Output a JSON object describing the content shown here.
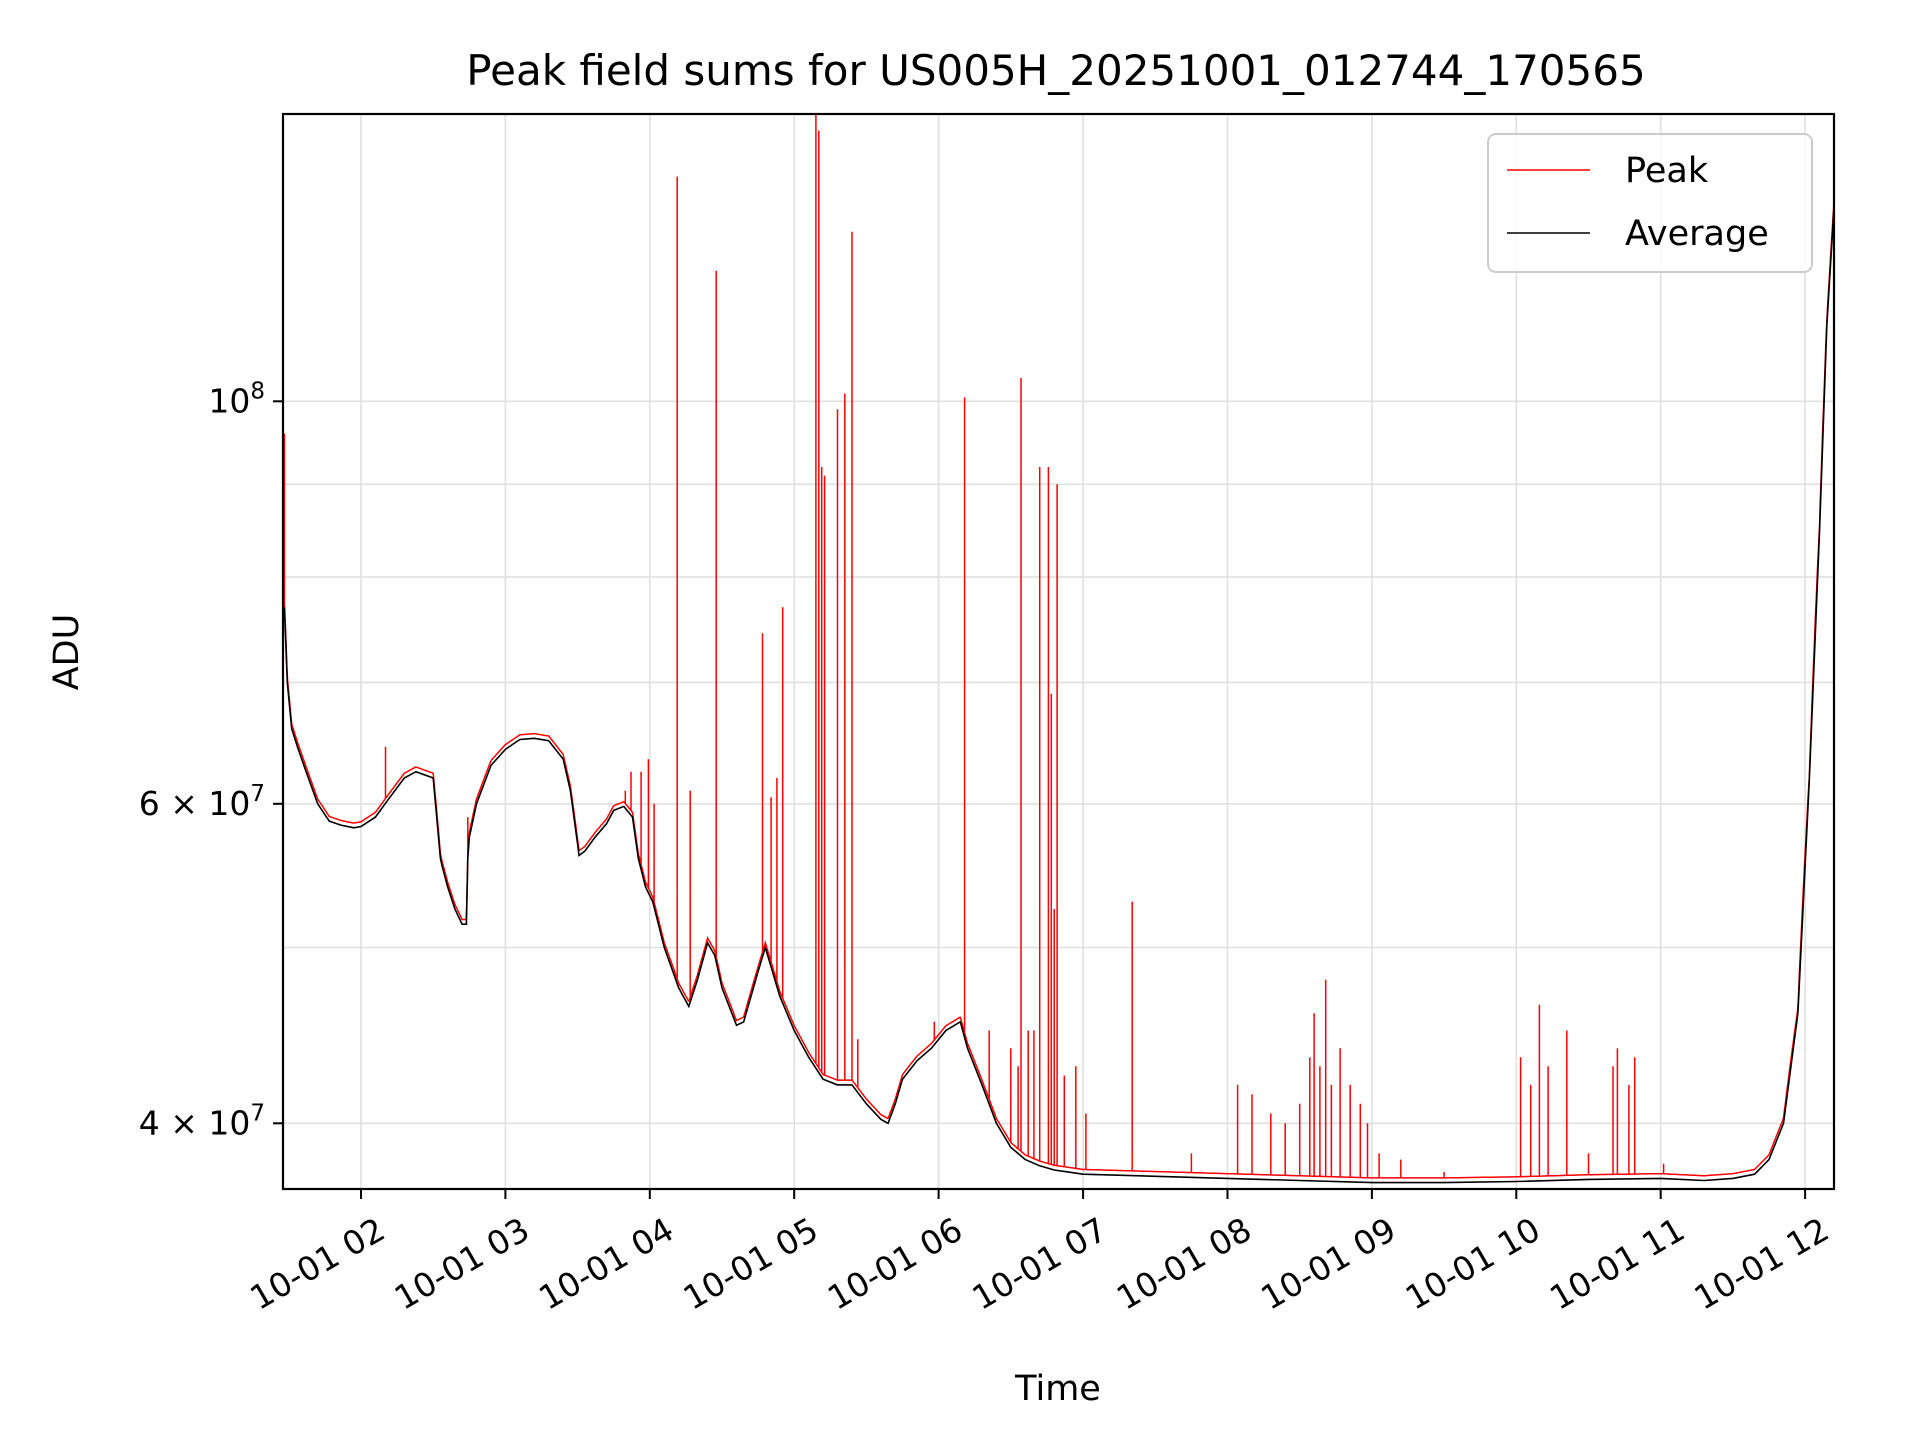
{
  "chart_data": {
    "type": "line",
    "title": "Peak field sums for US005H_20251001_012744_170565",
    "xlabel": "Time",
    "ylabel": "ADU",
    "yscale": "log",
    "ylim": [
      36800000,
      144000000
    ],
    "xlim": [
      1.46,
      12.2
    ],
    "grid": true,
    "legend_position": "top-right",
    "x_ticks": [
      {
        "value": 2,
        "label": "10-01 02"
      },
      {
        "value": 3,
        "label": "10-01 03"
      },
      {
        "value": 4,
        "label": "10-01 04"
      },
      {
        "value": 5,
        "label": "10-01 05"
      },
      {
        "value": 6,
        "label": "10-01 06"
      },
      {
        "value": 7,
        "label": "10-01 07"
      },
      {
        "value": 8,
        "label": "10-01 08"
      },
      {
        "value": 9,
        "label": "10-01 09"
      },
      {
        "value": 10,
        "label": "10-01 10"
      },
      {
        "value": 11,
        "label": "10-01 11"
      },
      {
        "value": 12,
        "label": "10-01 12"
      }
    ],
    "y_ticks": [
      {
        "value": 40000000,
        "mantissa": "4",
        "times": "×",
        "base": "10",
        "exp": "7"
      },
      {
        "value": 60000000,
        "mantissa": "6",
        "times": "×",
        "base": "10",
        "exp": "7"
      },
      {
        "value": 100000000,
        "mantissa": "",
        "times": "",
        "base": "10",
        "exp": "8"
      }
    ],
    "y_minor_gridlines": [
      50000000,
      70000000,
      80000000,
      90000000
    ],
    "series": [
      {
        "name": "Average",
        "color": "#000000",
        "x": [
          1.46,
          1.47,
          1.49,
          1.52,
          1.56,
          1.62,
          1.7,
          1.78,
          1.86,
          1.95,
          2.0,
          2.1,
          2.2,
          2.3,
          2.38,
          2.5,
          2.55,
          2.56,
          2.6,
          2.65,
          2.7,
          2.73,
          2.74,
          2.75,
          2.8,
          2.9,
          3.0,
          3.1,
          3.2,
          3.3,
          3.4,
          3.45,
          3.5,
          3.51,
          3.55,
          3.62,
          3.7,
          3.75,
          3.82,
          3.88,
          3.92,
          3.97,
          4.02,
          4.1,
          4.2,
          4.27,
          4.33,
          4.4,
          4.45,
          4.5,
          4.6,
          4.65,
          4.75,
          4.8,
          4.9,
          5.0,
          5.1,
          5.2,
          5.3,
          5.4,
          5.5,
          5.6,
          5.65,
          5.7,
          5.75,
          5.85,
          5.95,
          6.05,
          6.15,
          6.2,
          6.3,
          6.4,
          6.5,
          6.6,
          6.7,
          6.8,
          6.9,
          7.0,
          7.5,
          8.0,
          8.5,
          9.0,
          9.5,
          10.0,
          10.5,
          11.0,
          11.3,
          11.5,
          11.65,
          11.75,
          11.85,
          11.95,
          12.03,
          12.1,
          12.15,
          12.2
        ],
        "values": [
          76000000,
          77000000,
          70000000,
          66000000,
          64500000,
          62500000,
          60000000,
          58700000,
          58400000,
          58200000,
          58300000,
          59000000,
          60500000,
          62000000,
          62500000,
          62000000,
          56000000,
          55500000,
          54000000,
          52500000,
          51500000,
          51500000,
          56000000,
          57500000,
          60000000,
          63000000,
          64300000,
          65100000,
          65200000,
          65000000,
          63500000,
          61000000,
          57000000,
          56200000,
          56500000,
          57500000,
          58500000,
          59500000,
          59800000,
          59000000,
          56000000,
          54000000,
          53000000,
          50000000,
          47500000,
          46400000,
          48000000,
          50300000,
          49500000,
          47500000,
          45300000,
          45500000,
          48500000,
          50000000,
          47000000,
          45000000,
          43500000,
          42300000,
          42000000,
          42000000,
          41000000,
          40200000,
          40000000,
          41000000,
          42300000,
          43300000,
          44000000,
          45000000,
          45500000,
          44000000,
          42000000,
          40000000,
          38800000,
          38200000,
          37900000,
          37700000,
          37600000,
          37500000,
          37400000,
          37300000,
          37200000,
          37100000,
          37100000,
          37150000,
          37250000,
          37300000,
          37200000,
          37300000,
          37500000,
          38200000,
          40000000,
          46000000,
          62000000,
          85000000,
          110000000,
          128000000
        ]
      },
      {
        "name": "Peak",
        "color": "#ff0000",
        "spikes": [
          {
            "x": 1.47,
            "value": 96000000
          },
          {
            "x": 2.17,
            "value": 64500000
          },
          {
            "x": 2.74,
            "value": 59000000
          },
          {
            "x": 3.83,
            "value": 61000000
          },
          {
            "x": 3.87,
            "value": 62500000
          },
          {
            "x": 3.94,
            "value": 62500000
          },
          {
            "x": 3.99,
            "value": 63500000
          },
          {
            "x": 4.03,
            "value": 60000000
          },
          {
            "x": 4.19,
            "value": 133000000
          },
          {
            "x": 4.28,
            "value": 61000000
          },
          {
            "x": 4.46,
            "value": 118000000
          },
          {
            "x": 4.78,
            "value": 74500000
          },
          {
            "x": 4.84,
            "value": 60500000
          },
          {
            "x": 4.88,
            "value": 62000000
          },
          {
            "x": 4.92,
            "value": 77000000
          },
          {
            "x": 5.15,
            "value": 144000000
          },
          {
            "x": 5.17,
            "value": 141000000
          },
          {
            "x": 5.19,
            "value": 92000000
          },
          {
            "x": 5.21,
            "value": 91000000
          },
          {
            "x": 5.3,
            "value": 99000000
          },
          {
            "x": 5.35,
            "value": 101000000
          },
          {
            "x": 5.4,
            "value": 124000000
          },
          {
            "x": 5.44,
            "value": 44500000
          },
          {
            "x": 5.97,
            "value": 45500000
          },
          {
            "x": 6.18,
            "value": 100500000
          },
          {
            "x": 6.35,
            "value": 45000000
          },
          {
            "x": 6.5,
            "value": 44000000
          },
          {
            "x": 6.55,
            "value": 43000000
          },
          {
            "x": 6.57,
            "value": 103000000
          },
          {
            "x": 6.62,
            "value": 45000000
          },
          {
            "x": 6.66,
            "value": 45000000
          },
          {
            "x": 6.7,
            "value": 92000000
          },
          {
            "x": 6.76,
            "value": 92000000
          },
          {
            "x": 6.78,
            "value": 69000000
          },
          {
            "x": 6.8,
            "value": 52500000
          },
          {
            "x": 6.82,
            "value": 90000000
          },
          {
            "x": 6.87,
            "value": 42500000
          },
          {
            "x": 6.95,
            "value": 43000000
          },
          {
            "x": 7.02,
            "value": 40500000
          },
          {
            "x": 7.34,
            "value": 53000000
          },
          {
            "x": 7.75,
            "value": 38500000
          },
          {
            "x": 8.07,
            "value": 42000000
          },
          {
            "x": 8.17,
            "value": 41500000
          },
          {
            "x": 8.3,
            "value": 40500000
          },
          {
            "x": 8.4,
            "value": 40000000
          },
          {
            "x": 8.5,
            "value": 41000000
          },
          {
            "x": 8.57,
            "value": 43500000
          },
          {
            "x": 8.6,
            "value": 46000000
          },
          {
            "x": 8.64,
            "value": 43000000
          },
          {
            "x": 8.68,
            "value": 48000000
          },
          {
            "x": 8.72,
            "value": 42000000
          },
          {
            "x": 8.78,
            "value": 44000000
          },
          {
            "x": 8.85,
            "value": 42000000
          },
          {
            "x": 8.92,
            "value": 41000000
          },
          {
            "x": 8.97,
            "value": 40000000
          },
          {
            "x": 9.05,
            "value": 38500000
          },
          {
            "x": 9.2,
            "value": 38200000
          },
          {
            "x": 9.5,
            "value": 37600000
          },
          {
            "x": 10.03,
            "value": 43500000
          },
          {
            "x": 10.1,
            "value": 42000000
          },
          {
            "x": 10.16,
            "value": 46500000
          },
          {
            "x": 10.22,
            "value": 43000000
          },
          {
            "x": 10.35,
            "value": 45000000
          },
          {
            "x": 10.5,
            "value": 38500000
          },
          {
            "x": 10.67,
            "value": 43000000
          },
          {
            "x": 10.7,
            "value": 44000000
          },
          {
            "x": 10.78,
            "value": 42000000
          },
          {
            "x": 10.82,
            "value": 43500000
          },
          {
            "x": 11.02,
            "value": 38000000
          }
        ]
      }
    ]
  }
}
